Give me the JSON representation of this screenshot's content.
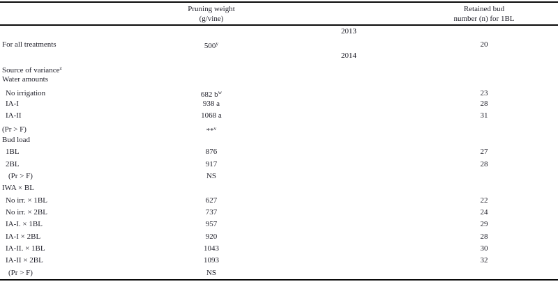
{
  "table": {
    "name": "treatment-effects-table",
    "columns": {
      "label_header": "",
      "pruning": {
        "line1": "Pruning weight",
        "line2": "(g/vine)"
      },
      "retained": {
        "line1": "Retained bud",
        "line2": "number (n) for 1BL"
      }
    },
    "rows": [
      {
        "type": "year",
        "label": "2013"
      },
      {
        "type": "data",
        "label": "For all treatments",
        "indent": 0,
        "pruning": "500",
        "pruning_sup": "y",
        "retained": "20"
      },
      {
        "type": "year",
        "label": "2014"
      },
      {
        "type": "data",
        "label": "Source of variance",
        "label_sup": "z",
        "indent": 0,
        "pruning": "",
        "retained": ""
      },
      {
        "type": "data",
        "label": "Water amounts",
        "indent": 0,
        "pruning": "",
        "retained": ""
      },
      {
        "type": "data",
        "label": "No irrigation",
        "indent": 1,
        "pruning": "682 b",
        "pruning_sup": "w",
        "retained": "23"
      },
      {
        "type": "data",
        "label": "IA-I",
        "indent": 1,
        "pruning": "938 a",
        "retained": "28"
      },
      {
        "type": "data",
        "label": "IA-II",
        "indent": 1,
        "pruning": "1068 a",
        "retained": "31"
      },
      {
        "type": "data",
        "label": "(Pr > F)",
        "indent": 0,
        "pruning": "**",
        "pruning_sup": "v",
        "retained": ""
      },
      {
        "type": "data",
        "label": "Bud load",
        "indent": 0,
        "pruning": "",
        "retained": ""
      },
      {
        "type": "data",
        "label": "1BL",
        "indent": 1,
        "pruning": "876",
        "retained": "27"
      },
      {
        "type": "data",
        "label": "2BL",
        "indent": 1,
        "pruning": "917",
        "retained": "28"
      },
      {
        "type": "data",
        "label": "(Pr > F)",
        "indent": 2,
        "pruning": "NS",
        "retained": ""
      },
      {
        "type": "data",
        "label": "IWA × BL",
        "indent": 0,
        "pruning": "",
        "retained": ""
      },
      {
        "type": "data",
        "label": "No irr. × 1BL",
        "indent": 1,
        "pruning": "627",
        "retained": "22"
      },
      {
        "type": "data",
        "label": "No irr. × 2BL",
        "indent": 1,
        "pruning": "737",
        "retained": "24"
      },
      {
        "type": "data",
        "label": "IA-I. × 1BL",
        "indent": 1,
        "pruning": "957",
        "retained": "29"
      },
      {
        "type": "data",
        "label": "IA-I × 2BL",
        "indent": 1,
        "pruning": "920",
        "retained": "28"
      },
      {
        "type": "data",
        "label": "IA-II. × 1BL",
        "indent": 1,
        "pruning": "1043",
        "retained": "30"
      },
      {
        "type": "data",
        "label": "IA-II × 2BL",
        "indent": 1,
        "pruning": "1093",
        "retained": "32"
      },
      {
        "type": "data",
        "label": "(Pr > F)",
        "indent": 2,
        "pruning": "NS",
        "retained": ""
      }
    ]
  },
  "colors": {
    "text": "#1e1e28",
    "rule": "#0a0a0a",
    "background": "#ffffff"
  }
}
